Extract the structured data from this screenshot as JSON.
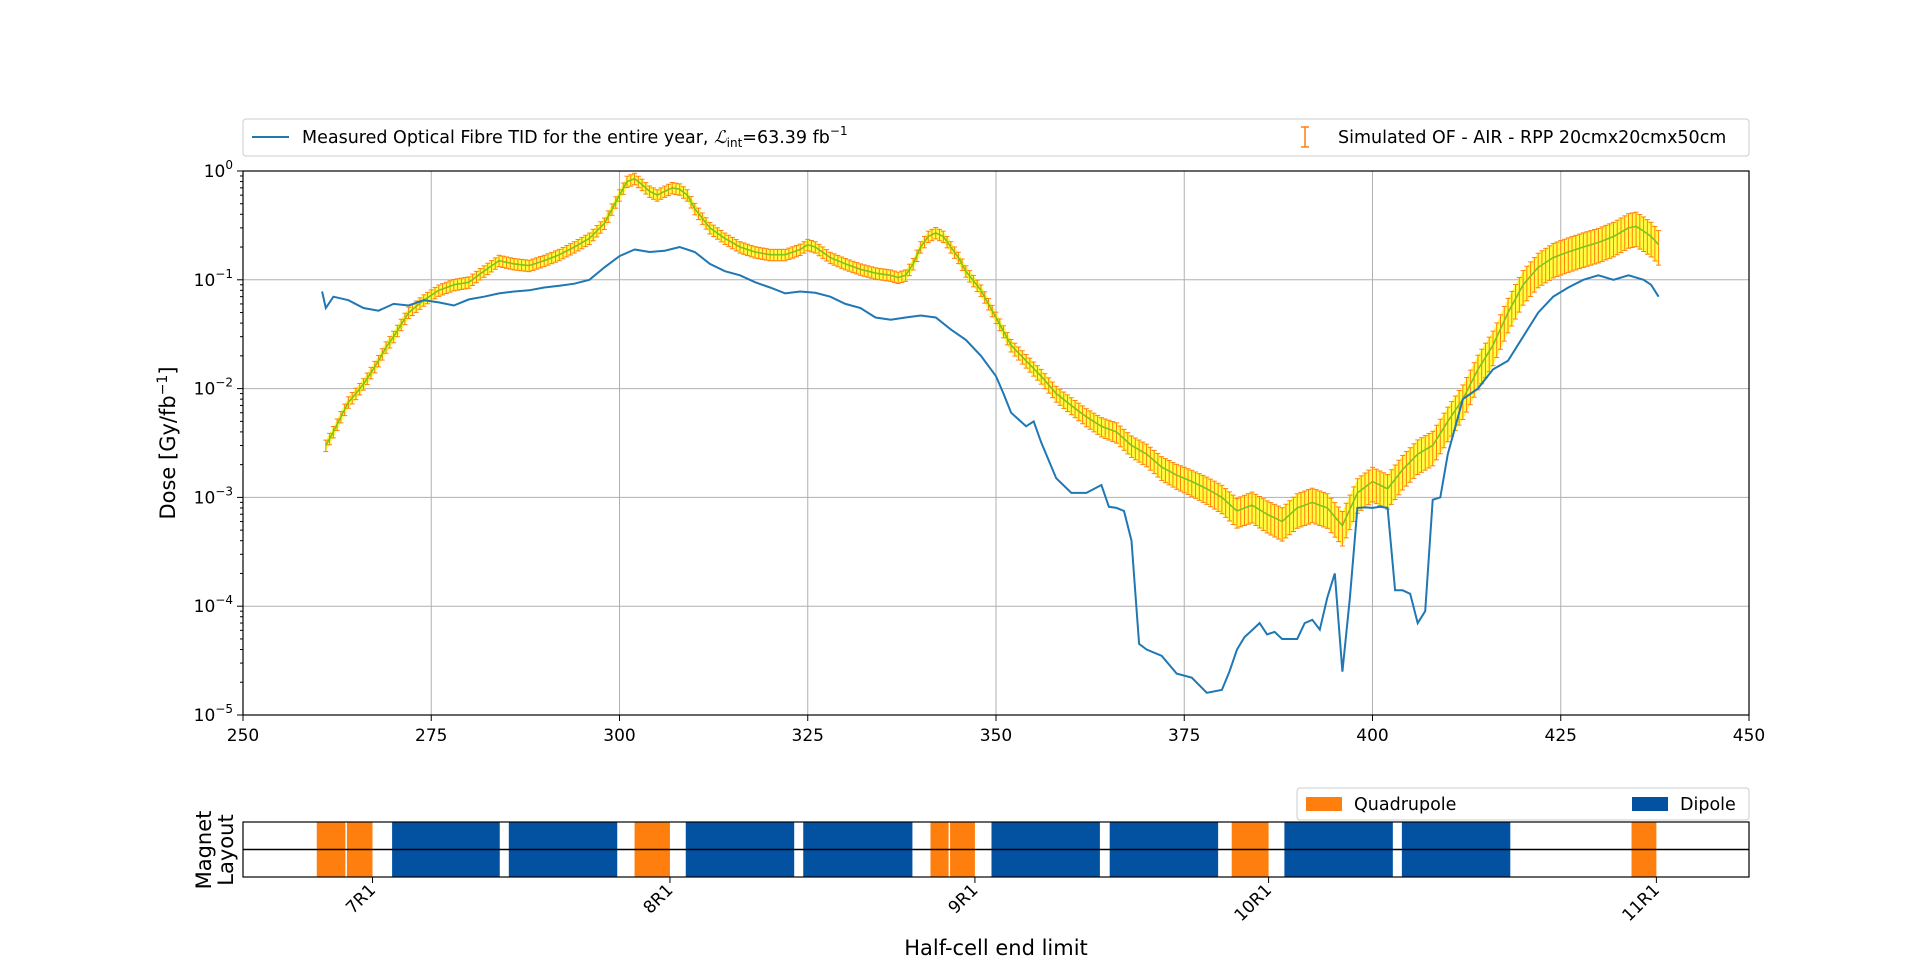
{
  "chart_data": [
    {
      "type": "line",
      "ylabel_main": "Dose [Gy/fb",
      "ylabel_sup": "−1",
      "ylabel_close": "]",
      "xlim": [
        250,
        450
      ],
      "ylim": [
        1e-05,
        1
      ],
      "yscale": "log",
      "grid": true,
      "x_ticks": [
        "250",
        "275",
        "300",
        "325",
        "350",
        "375",
        "400",
        "425",
        "450"
      ],
      "y_ticks": [
        {
          "base": "10",
          "exp": "0"
        },
        {
          "base": "10",
          "exp": "−1"
        },
        {
          "base": "10",
          "exp": "−2"
        },
        {
          "base": "10",
          "exp": "−3"
        },
        {
          "base": "10",
          "exp": "−4"
        },
        {
          "base": "10",
          "exp": "−5"
        }
      ],
      "legend": {
        "placement": "top",
        "measured": {
          "text": "Measured Optical Fibre TID for the entire year, ",
          "lumi_symbol": "ℒ",
          "lumi_sub": "int",
          "lumi_value": "=63.39 fb",
          "lumi_sup": "−1",
          "color": "#1f77b4"
        },
        "simulated": {
          "text": "Simulated OF - AIR - RPP 20cmx20cmx50cm",
          "color": "#ff7f0e"
        }
      },
      "series": [
        {
          "key": "measured",
          "color": "#1f77b4",
          "x": [
            260.5,
            261,
            262,
            264,
            266,
            268,
            270,
            272,
            274,
            276,
            278,
            280,
            282,
            284,
            286,
            288,
            290,
            292,
            294,
            296,
            298,
            300,
            302,
            304,
            306,
            308,
            310,
            312,
            314,
            316,
            318,
            320,
            322,
            324,
            326,
            328,
            330,
            332,
            334,
            336,
            338,
            340,
            342,
            344,
            346,
            348,
            350,
            351,
            352,
            354,
            355,
            356,
            358,
            360,
            362,
            364,
            365,
            366,
            367,
            368,
            369,
            370,
            372,
            374,
            376,
            378,
            380,
            381,
            382,
            383,
            384,
            385,
            386,
            387,
            388,
            390,
            391,
            392,
            393,
            394,
            395,
            396,
            397,
            398,
            399,
            400,
            401,
            402,
            403,
            404,
            405,
            406,
            407,
            408,
            409,
            410,
            412,
            414,
            416,
            418,
            420,
            422,
            424,
            426,
            428,
            430,
            432,
            434,
            436,
            437,
            438
          ],
          "y": [
            0.078,
            0.055,
            0.07,
            0.065,
            0.055,
            0.052,
            0.06,
            0.058,
            0.065,
            0.062,
            0.058,
            0.066,
            0.07,
            0.075,
            0.078,
            0.08,
            0.085,
            0.088,
            0.092,
            0.1,
            0.13,
            0.165,
            0.19,
            0.18,
            0.185,
            0.2,
            0.18,
            0.14,
            0.12,
            0.11,
            0.095,
            0.085,
            0.075,
            0.078,
            0.076,
            0.07,
            0.06,
            0.055,
            0.045,
            0.043,
            0.045,
            0.047,
            0.045,
            0.035,
            0.028,
            0.02,
            0.013,
            0.009,
            0.006,
            0.0045,
            0.005,
            0.0032,
            0.0015,
            0.0011,
            0.0011,
            0.0013,
            0.00082,
            0.0008,
            0.00075,
            0.0004,
            4.5e-05,
            4e-05,
            3.5e-05,
            2.4e-05,
            2.2e-05,
            1.6e-05,
            1.7e-05,
            2.5e-05,
            4e-05,
            5.2e-05,
            6e-05,
            7e-05,
            5.5e-05,
            5.8e-05,
            5e-05,
            5e-05,
            7e-05,
            7.5e-05,
            6.1e-05,
            0.00012,
            0.0002,
            2.5e-05,
            0.00012,
            0.0008,
            0.00081,
            0.0008,
            0.00082,
            0.0008,
            0.00014,
            0.00014,
            0.00013,
            7e-05,
            9e-05,
            0.00095,
            0.001,
            0.0025,
            0.008,
            0.01,
            0.015,
            0.018,
            0.03,
            0.05,
            0.07,
            0.085,
            0.1,
            0.11,
            0.1,
            0.11,
            0.1,
            0.09,
            0.07
          ]
        },
        {
          "key": "simulated",
          "color": "#ff7f0e",
          "error_fraction_low": 0.12,
          "error_fraction_high": 0.35,
          "x": [
            261,
            262,
            263,
            264,
            265,
            266,
            267,
            268,
            269,
            270,
            272,
            274,
            276,
            278,
            280,
            282,
            284,
            286,
            288,
            290,
            292,
            294,
            296,
            298,
            300,
            301,
            302,
            303,
            304,
            305,
            306,
            307,
            308,
            309,
            310,
            312,
            314,
            316,
            318,
            320,
            322,
            324,
            325,
            326,
            328,
            330,
            332,
            334,
            336,
            337,
            338,
            339,
            340,
            341,
            342,
            343,
            344,
            345,
            346,
            348,
            350,
            352,
            354,
            356,
            358,
            360,
            362,
            364,
            366,
            368,
            370,
            372,
            374,
            376,
            378,
            380,
            382,
            384,
            386,
            388,
            390,
            392,
            394,
            396,
            398,
            400,
            402,
            404,
            406,
            408,
            410,
            412,
            414,
            416,
            418,
            420,
            422,
            424,
            426,
            428,
            430,
            432,
            434,
            435,
            436,
            437,
            438
          ],
          "y": [
            0.003,
            0.004,
            0.0055,
            0.0075,
            0.009,
            0.011,
            0.014,
            0.018,
            0.024,
            0.03,
            0.05,
            0.065,
            0.08,
            0.09,
            0.095,
            0.12,
            0.15,
            0.14,
            0.135,
            0.15,
            0.17,
            0.2,
            0.24,
            0.33,
            0.6,
            0.8,
            0.85,
            0.75,
            0.65,
            0.6,
            0.65,
            0.7,
            0.68,
            0.6,
            0.45,
            0.3,
            0.24,
            0.2,
            0.18,
            0.17,
            0.17,
            0.19,
            0.21,
            0.2,
            0.16,
            0.14,
            0.125,
            0.115,
            0.11,
            0.105,
            0.11,
            0.14,
            0.2,
            0.25,
            0.27,
            0.25,
            0.2,
            0.16,
            0.12,
            0.08,
            0.045,
            0.025,
            0.018,
            0.013,
            0.009,
            0.007,
            0.0055,
            0.0045,
            0.004,
            0.003,
            0.0025,
            0.0019,
            0.0016,
            0.0014,
            0.0012,
            0.001,
            0.00075,
            0.00085,
            0.0007,
            0.0006,
            0.0008,
            0.0009,
            0.0008,
            0.00055,
            0.0011,
            0.0014,
            0.0012,
            0.0018,
            0.0025,
            0.003,
            0.005,
            0.008,
            0.015,
            0.025,
            0.05,
            0.09,
            0.13,
            0.16,
            0.18,
            0.2,
            0.22,
            0.25,
            0.3,
            0.31,
            0.28,
            0.25,
            0.21
          ]
        }
      ]
    },
    {
      "type": "layout",
      "xlabel": "Half-cell end limit",
      "ylabel_lines": [
        "Magnet",
        "Layout"
      ],
      "xlim": [
        250,
        450
      ],
      "legend": {
        "placement": "top-right",
        "entries": [
          {
            "label": "Quadrupole",
            "color": "#ff7f0e"
          },
          {
            "label": "Dipole",
            "color": "#0352a1"
          }
        ]
      },
      "tick_labels": [
        {
          "label": "7R1",
          "x": 267.2
        },
        {
          "label": "8R1",
          "x": 306.7
        },
        {
          "label": "9R1",
          "x": 347.2
        },
        {
          "label": "10R1",
          "x": 386.2
        },
        {
          "label": "11R1",
          "x": 437.7
        }
      ],
      "magnets": [
        {
          "kind": "quad",
          "x0": 259.8,
          "x1": 263.6
        },
        {
          "kind": "quad",
          "x0": 263.8,
          "x1": 267.2
        },
        {
          "kind": "dipole",
          "x0": 269.8,
          "x1": 284.1
        },
        {
          "kind": "dipole",
          "x0": 285.3,
          "x1": 299.7
        },
        {
          "kind": "quad",
          "x0": 302.0,
          "x1": 306.7
        },
        {
          "kind": "dipole",
          "x0": 308.8,
          "x1": 323.2
        },
        {
          "kind": "dipole",
          "x0": 324.4,
          "x1": 338.9
        },
        {
          "kind": "quad",
          "x0": 341.3,
          "x1": 343.7
        },
        {
          "kind": "quad",
          "x0": 343.9,
          "x1": 347.2
        },
        {
          "kind": "dipole",
          "x0": 349.4,
          "x1": 363.8
        },
        {
          "kind": "dipole",
          "x0": 365.1,
          "x1": 379.5
        },
        {
          "kind": "quad",
          "x0": 381.3,
          "x1": 386.2
        },
        {
          "kind": "dipole",
          "x0": 388.3,
          "x1": 402.7
        },
        {
          "kind": "dipole",
          "x0": 403.9,
          "x1": 418.3
        },
        {
          "kind": "quad",
          "x0": 434.4,
          "x1": 437.7
        }
      ]
    }
  ]
}
